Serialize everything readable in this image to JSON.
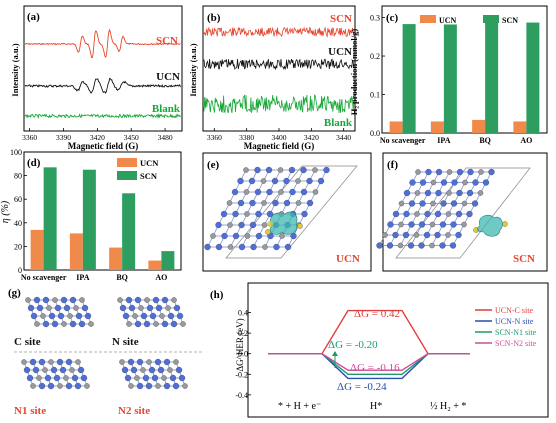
{
  "panels": {
    "a": {
      "label": "(a)"
    },
    "b": {
      "label": "(b)"
    },
    "c": {
      "label": "(c)"
    },
    "d": {
      "label": "(d)"
    },
    "e": {
      "label": "(e)",
      "structure_label": "UCN"
    },
    "f": {
      "label": "(f)",
      "structure_label": "SCN"
    },
    "g": {
      "label": "(g)",
      "sites": [
        "C site",
        "N site",
        "N1 site",
        "N2 site"
      ]
    },
    "h": {
      "label": "(h)"
    }
  },
  "colors": {
    "scn": "#e8452e",
    "ucn": "#111111",
    "blank": "#18a838",
    "bar_ucn": "#f08a4a",
    "bar_scn": "#2e9e60",
    "ucn_c": "#e23c3c",
    "ucn_n": "#2a4fae",
    "scn_n1": "#1c9a6c",
    "scn_n2": "#d04a9a",
    "iso": "#3fb7b0",
    "atom_n": "#4f6fd6",
    "atom_c": "#9a9a9a",
    "atom_s": "#e3c63a"
  },
  "chart_data": [
    {
      "id": "a",
      "type": "line",
      "xlabel": "Magnetic field (G)",
      "ylabel": "Intensity (a.u.)",
      "xlim": [
        3355,
        3495
      ],
      "xticks": [
        3360,
        3390,
        3420,
        3450,
        3480
      ],
      "series": [
        {
          "name": "SCN",
          "color": "#e8452e"
        },
        {
          "name": "UCN",
          "color": "#111111"
        },
        {
          "name": "Blank",
          "color": "#18a838"
        }
      ]
    },
    {
      "id": "b",
      "type": "line",
      "xlabel": "Magnetic field (G)",
      "ylabel": "Intensity (a.u.)",
      "xlim": [
        3353,
        3447
      ],
      "xticks": [
        3360,
        3380,
        3400,
        3420,
        3440
      ],
      "series": [
        {
          "name": "SCN",
          "color": "#e8452e"
        },
        {
          "name": "UCN",
          "color": "#111111"
        },
        {
          "name": "Blank",
          "color": "#18a838"
        }
      ]
    },
    {
      "id": "c",
      "type": "bar",
      "ylabel": "H₂ production (mmol/g)",
      "ylim": [
        0,
        0.33
      ],
      "yticks": [
        0.0,
        0.1,
        0.2,
        0.3
      ],
      "ytick_labels": [
        "0.0",
        "0.1",
        "0.2",
        "0.3"
      ],
      "categories": [
        "No scavenger",
        "IPA",
        "BQ",
        "AO"
      ],
      "legend": [
        "UCN",
        "SCN"
      ],
      "series": [
        {
          "name": "UCN",
          "values": [
            0.03,
            0.03,
            0.034,
            0.03
          ]
        },
        {
          "name": "SCN",
          "values": [
            0.283,
            0.282,
            0.292,
            0.287
          ]
        }
      ]
    },
    {
      "id": "d",
      "type": "bar",
      "ylabel": "η (%)",
      "ylim": [
        0,
        100
      ],
      "yticks": [
        0,
        20,
        40,
        60,
        80,
        100
      ],
      "ytick_labels": [
        "0",
        "20",
        "40",
        "60",
        "80",
        "100"
      ],
      "categories": [
        "No scavenger",
        "IPA",
        "BQ",
        "AO"
      ],
      "legend": [
        "UCN",
        "SCN"
      ],
      "series": [
        {
          "name": "UCN",
          "values": [
            34,
            31,
            19,
            8
          ]
        },
        {
          "name": "SCN",
          "values": [
            87,
            85,
            65,
            16
          ]
        }
      ]
    },
    {
      "id": "h",
      "type": "line",
      "ylabel": "ΔG^HER (eV)",
      "ylim": [
        -0.45,
        0.6
      ],
      "yticks": [
        -0.4,
        -0.2,
        0.0,
        0.2,
        0.4
      ],
      "ytick_labels": [
        "-0.4",
        "-0.2",
        "0.0",
        "0.2",
        "0.4"
      ],
      "states": [
        "* + H + e⁻",
        "H*",
        "½ H₂ + *"
      ],
      "series": [
        {
          "name": "UCN-C site",
          "values": [
            0,
            0.42,
            0
          ],
          "color": "#e23c3c"
        },
        {
          "name": "UCN-N site",
          "values": [
            0,
            -0.24,
            0
          ],
          "color": "#2a4fae"
        },
        {
          "name": "SCN-N1 site",
          "values": [
            0,
            -0.2,
            0
          ],
          "color": "#1c9a6c"
        },
        {
          "name": "SCN-N2 site",
          "values": [
            0,
            -0.16,
            0
          ],
          "color": "#d04a9a"
        }
      ],
      "annotations": [
        "ΔG = 0.42",
        "ΔG = -0.20",
        "ΔG = -0.16",
        "ΔG = -0.24"
      ]
    }
  ]
}
